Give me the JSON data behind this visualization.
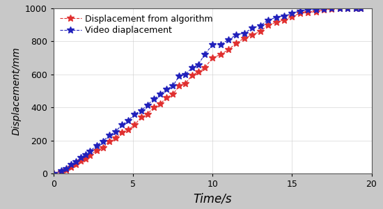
{
  "title": "",
  "xlabel": "Time/s",
  "ylabel": "Displacement/mm",
  "xlim": [
    0,
    20
  ],
  "ylim": [
    0,
    1000
  ],
  "xticks": [
    0,
    5,
    10,
    15,
    20
  ],
  "yticks": [
    0,
    200,
    400,
    600,
    800,
    1000
  ],
  "bg_color": "#c8c8c8",
  "plot_bg_color": "#ffffff",
  "red_label": "Displacement from algorithm",
  "blue_label": "Video diaplacement",
  "red_color": "#e03030",
  "blue_color": "#2020bb",
  "time_red": [
    0.0,
    0.5,
    0.8,
    1.1,
    1.4,
    1.7,
    2.0,
    2.3,
    2.7,
    3.1,
    3.5,
    3.9,
    4.3,
    4.7,
    5.1,
    5.5,
    5.9,
    6.3,
    6.7,
    7.1,
    7.5,
    7.9,
    8.3,
    8.7,
    9.1,
    9.5,
    10.0,
    10.5,
    11.0,
    11.5,
    12.0,
    12.5,
    13.0,
    13.5,
    14.0,
    14.5,
    15.0,
    15.5,
    16.0,
    16.5,
    17.0,
    17.5,
    18.0,
    18.5,
    19.0,
    19.3
  ],
  "disp_red": [
    0,
    8,
    20,
    40,
    55,
    75,
    90,
    110,
    140,
    155,
    195,
    215,
    250,
    265,
    295,
    340,
    360,
    400,
    420,
    460,
    480,
    530,
    545,
    595,
    615,
    640,
    700,
    720,
    750,
    790,
    820,
    840,
    860,
    900,
    915,
    930,
    950,
    970,
    975,
    980,
    990,
    995,
    998,
    1000,
    1000,
    1000
  ],
  "time_blue": [
    0.0,
    0.5,
    0.8,
    1.1,
    1.4,
    1.7,
    2.0,
    2.3,
    2.7,
    3.1,
    3.5,
    3.9,
    4.3,
    4.7,
    5.1,
    5.5,
    5.9,
    6.3,
    6.7,
    7.1,
    7.5,
    7.9,
    8.3,
    8.7,
    9.1,
    9.5,
    10.0,
    10.5,
    11.0,
    11.5,
    12.0,
    12.5,
    13.0,
    13.5,
    14.0,
    14.5,
    15.0,
    15.5,
    16.0,
    16.5,
    17.0,
    17.5,
    18.0,
    18.5,
    19.0,
    19.3
  ],
  "disp_blue": [
    0,
    15,
    30,
    55,
    70,
    95,
    115,
    135,
    170,
    195,
    230,
    255,
    295,
    320,
    360,
    380,
    415,
    450,
    480,
    510,
    530,
    590,
    600,
    640,
    660,
    720,
    780,
    780,
    810,
    840,
    850,
    880,
    895,
    930,
    945,
    955,
    970,
    985,
    990,
    993,
    996,
    1000,
    1000,
    1001,
    1002,
    1002
  ],
  "marker_size": 7,
  "linewidth": 0.8,
  "grid_color": "#cccccc",
  "xlabel_fontsize": 12,
  "ylabel_fontsize": 10,
  "tick_fontsize": 9,
  "legend_fontsize": 9
}
